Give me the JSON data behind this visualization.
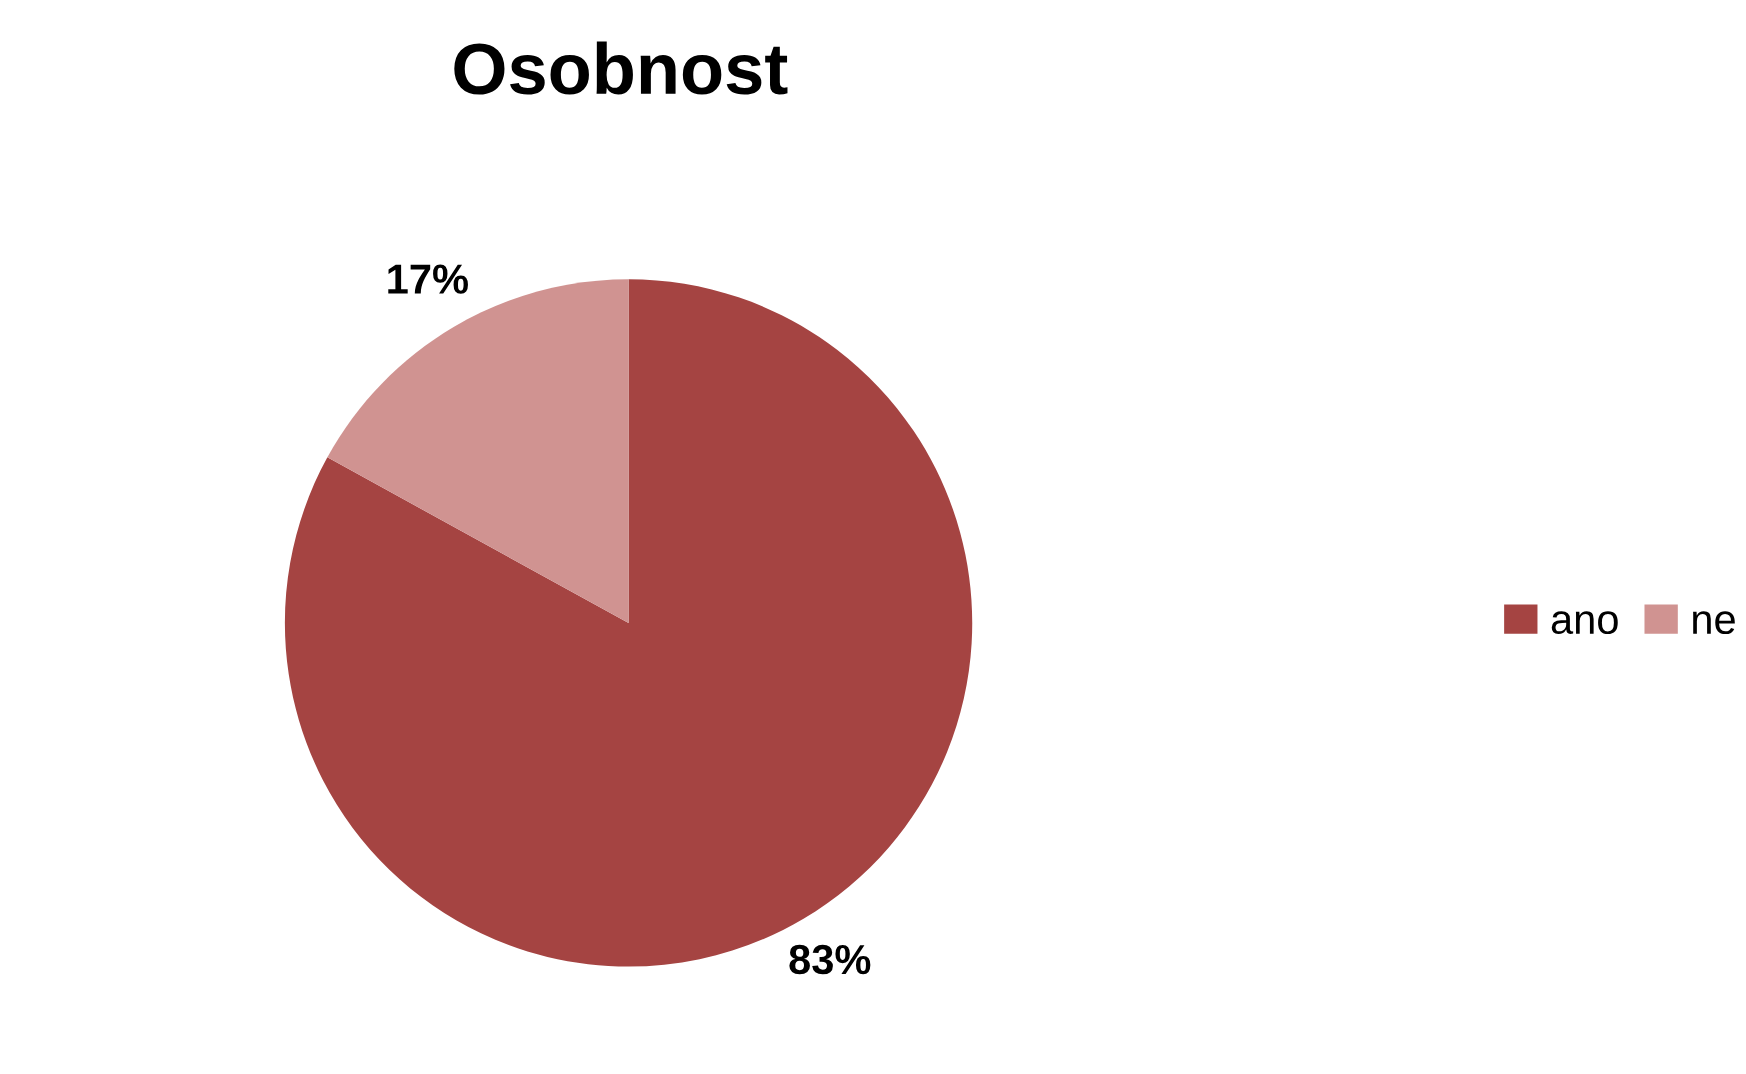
{
  "chart_data": {
    "type": "pie",
    "title": "Osobnost",
    "categories": [
      "ano",
      "ne"
    ],
    "values": [
      83,
      17
    ],
    "colors": [
      "#a54442",
      "#d09391"
    ],
    "value_labels": [
      "83%",
      "17%"
    ],
    "legend": "right"
  }
}
